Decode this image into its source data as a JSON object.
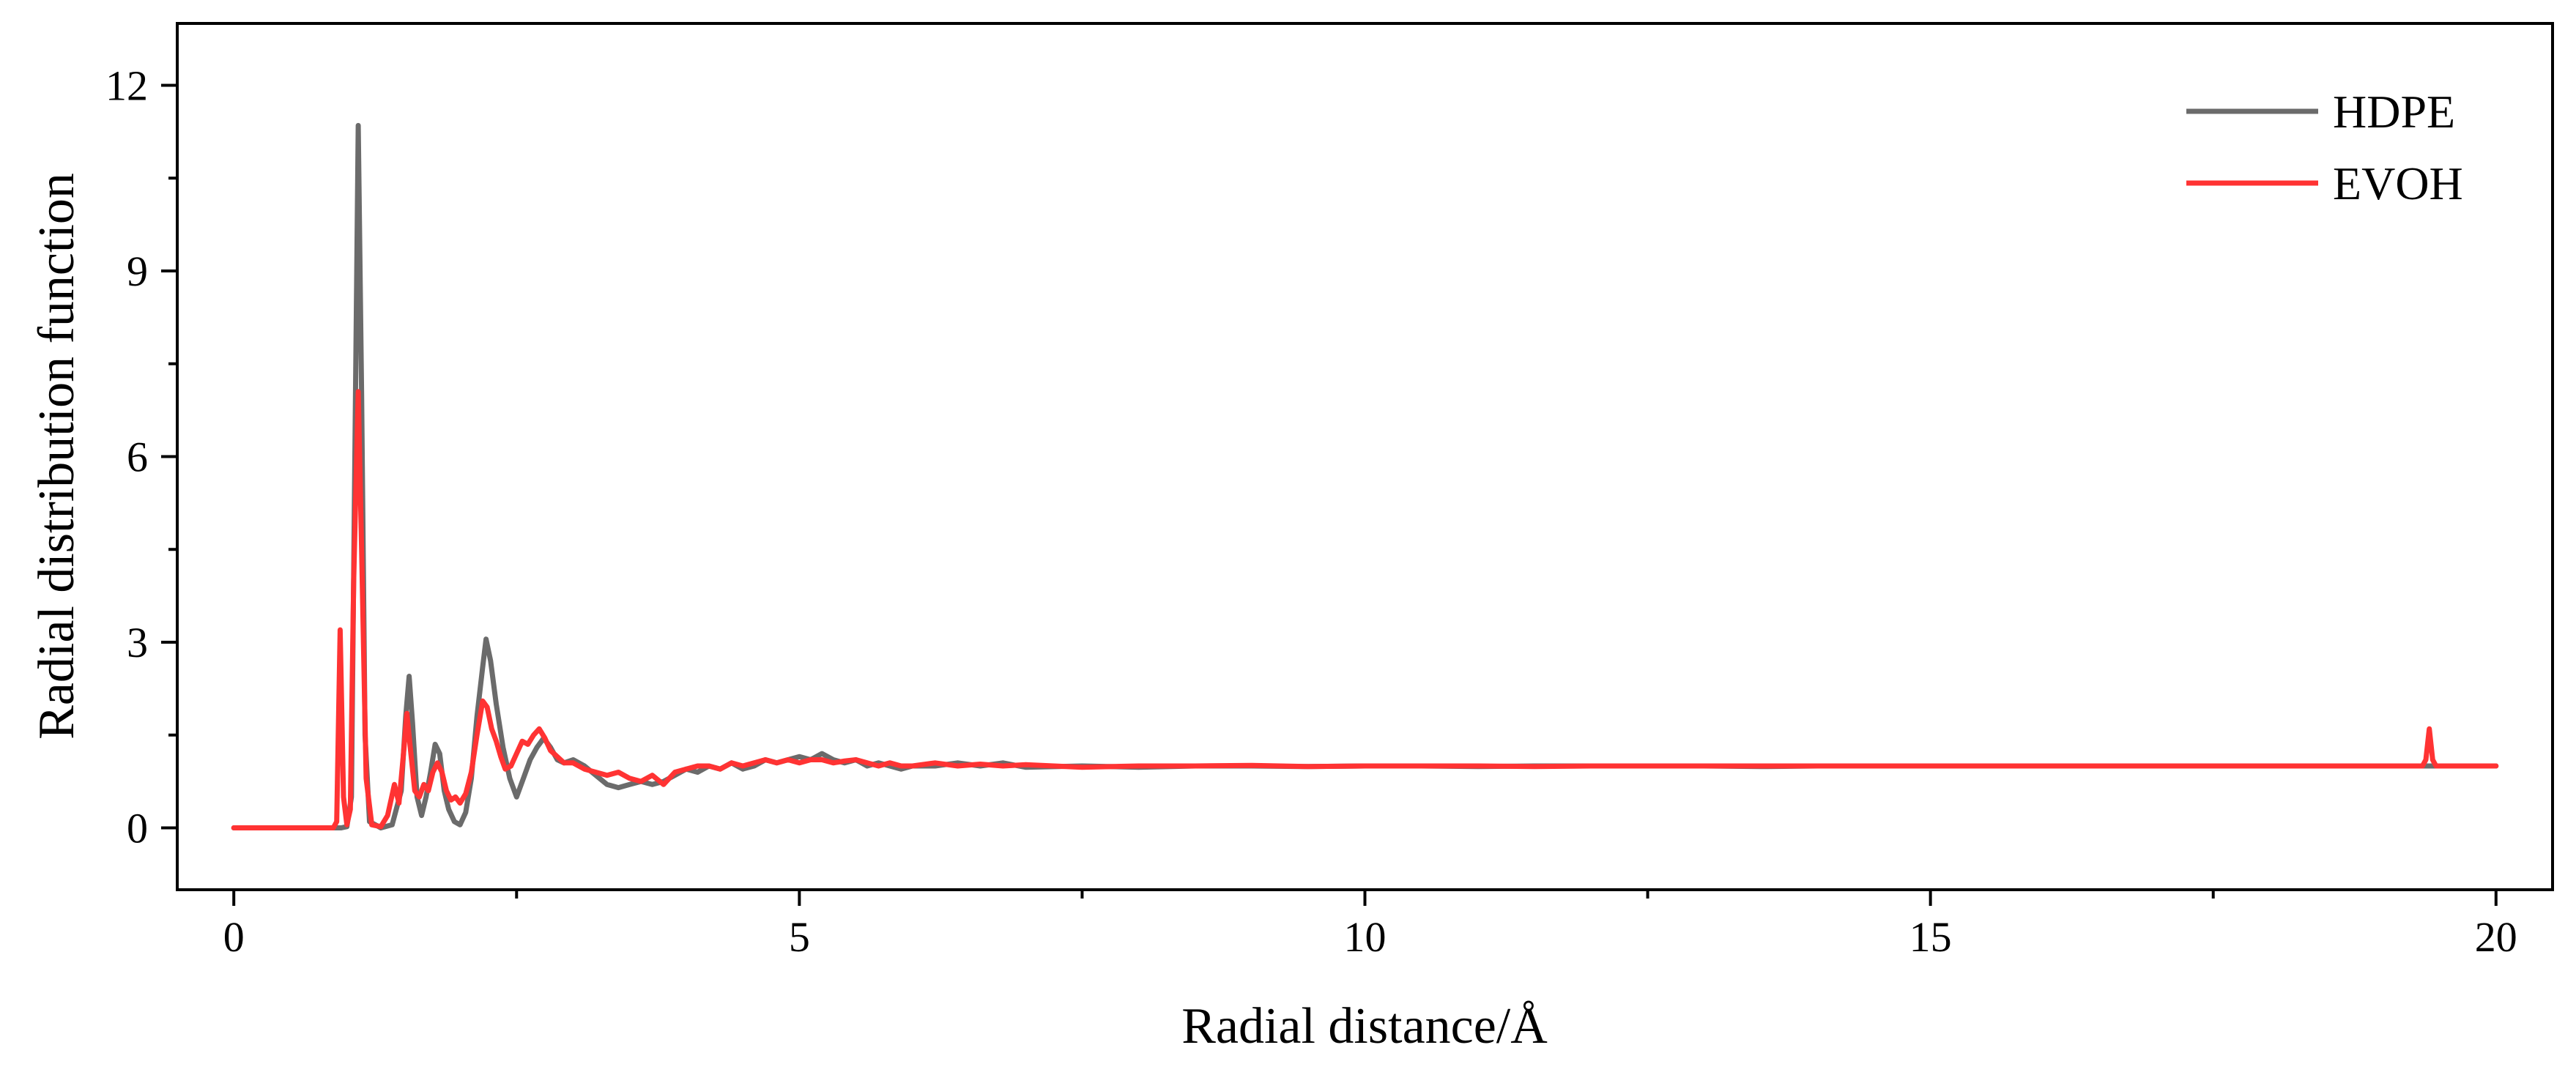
{
  "chart_data": {
    "type": "line",
    "xlabel": "Radial distance/Å",
    "ylabel": "Radial distribution function",
    "xlim": [
      -0.5,
      20.5
    ],
    "ylim": [
      -1,
      13
    ],
    "xticks": [
      0,
      5,
      10,
      15,
      20
    ],
    "xtick_labels": [
      "0",
      "5",
      "10",
      "15",
      "20"
    ],
    "yticks": [
      0,
      3,
      6,
      9,
      12
    ],
    "ytick_labels": [
      "0",
      "3",
      "6",
      "9",
      "12"
    ],
    "grid": false,
    "legend_position": "top-right",
    "series": [
      {
        "name": "HDPE",
        "color": "#6b6b6b",
        "points": [
          [
            0,
            0
          ],
          [
            0.9,
            0
          ],
          [
            0.95,
            0
          ],
          [
            1.0,
            0.02
          ],
          [
            1.04,
            0.5
          ],
          [
            1.07,
            6.0
          ],
          [
            1.1,
            11.35
          ],
          [
            1.13,
            7.0
          ],
          [
            1.16,
            1.5
          ],
          [
            1.2,
            0.1
          ],
          [
            1.3,
            0
          ],
          [
            1.4,
            0.05
          ],
          [
            1.48,
            0.6
          ],
          [
            1.52,
            1.8
          ],
          [
            1.55,
            2.45
          ],
          [
            1.58,
            1.7
          ],
          [
            1.62,
            0.5
          ],
          [
            1.66,
            0.2
          ],
          [
            1.7,
            0.5
          ],
          [
            1.74,
            0.9
          ],
          [
            1.78,
            1.35
          ],
          [
            1.82,
            1.2
          ],
          [
            1.86,
            0.6
          ],
          [
            1.9,
            0.3
          ],
          [
            1.95,
            0.1
          ],
          [
            2.0,
            0.05
          ],
          [
            2.05,
            0.25
          ],
          [
            2.1,
            0.8
          ],
          [
            2.15,
            1.8
          ],
          [
            2.2,
            2.6
          ],
          [
            2.23,
            3.05
          ],
          [
            2.27,
            2.7
          ],
          [
            2.32,
            2.0
          ],
          [
            2.38,
            1.3
          ],
          [
            2.44,
            0.8
          ],
          [
            2.5,
            0.5
          ],
          [
            2.56,
            0.8
          ],
          [
            2.62,
            1.1
          ],
          [
            2.68,
            1.3
          ],
          [
            2.74,
            1.45
          ],
          [
            2.8,
            1.3
          ],
          [
            2.86,
            1.1
          ],
          [
            2.92,
            1.05
          ],
          [
            3.0,
            1.1
          ],
          [
            3.1,
            1.0
          ],
          [
            3.2,
            0.85
          ],
          [
            3.3,
            0.7
          ],
          [
            3.4,
            0.65
          ],
          [
            3.5,
            0.7
          ],
          [
            3.6,
            0.75
          ],
          [
            3.7,
            0.7
          ],
          [
            3.8,
            0.75
          ],
          [
            3.9,
            0.85
          ],
          [
            4.0,
            0.95
          ],
          [
            4.1,
            0.9
          ],
          [
            4.2,
            1.0
          ],
          [
            4.3,
            0.95
          ],
          [
            4.4,
            1.05
          ],
          [
            4.5,
            0.95
          ],
          [
            4.6,
            1.0
          ],
          [
            4.7,
            1.1
          ],
          [
            4.8,
            1.05
          ],
          [
            4.9,
            1.1
          ],
          [
            5.0,
            1.15
          ],
          [
            5.1,
            1.1
          ],
          [
            5.2,
            1.2
          ],
          [
            5.3,
            1.1
          ],
          [
            5.4,
            1.05
          ],
          [
            5.5,
            1.1
          ],
          [
            5.6,
            1.0
          ],
          [
            5.7,
            1.05
          ],
          [
            5.8,
            1.0
          ],
          [
            5.9,
            0.95
          ],
          [
            6.0,
            1.0
          ],
          [
            6.2,
            1.0
          ],
          [
            6.4,
            1.05
          ],
          [
            6.6,
            1.0
          ],
          [
            6.8,
            1.05
          ],
          [
            7.0,
            0.98
          ],
          [
            7.5,
            1.0
          ],
          [
            8.0,
            0.98
          ],
          [
            8.5,
            1.0
          ],
          [
            9.0,
            1.0
          ],
          [
            9.5,
            0.99
          ],
          [
            10.0,
            1.0
          ],
          [
            10.5,
            1.0
          ],
          [
            11.0,
            0.99
          ],
          [
            11.5,
            1.0
          ],
          [
            12.0,
            1.0
          ],
          [
            12.5,
            1.0
          ],
          [
            13.0,
            1.0
          ],
          [
            13.5,
            0.99
          ],
          [
            14.0,
            1.0
          ],
          [
            14.5,
            1.0
          ],
          [
            15.0,
            1.0
          ],
          [
            15.5,
            1.0
          ],
          [
            16.0,
            1.0
          ],
          [
            16.5,
            1.0
          ],
          [
            17.0,
            1.0
          ],
          [
            17.5,
            1.0
          ],
          [
            18.0,
            1.0
          ],
          [
            18.5,
            1.0
          ],
          [
            19.0,
            1.0
          ],
          [
            19.5,
            1.0
          ],
          [
            20.0,
            1.0
          ]
        ]
      },
      {
        "name": "EVOH",
        "color": "#ff3333",
        "points": [
          [
            0,
            0
          ],
          [
            0.88,
            0
          ],
          [
            0.91,
            0.1
          ],
          [
            0.94,
            3.2
          ],
          [
            0.97,
            0.5
          ],
          [
            1.0,
            0.05
          ],
          [
            1.03,
            0.3
          ],
          [
            1.06,
            4.0
          ],
          [
            1.1,
            7.05
          ],
          [
            1.13,
            4.5
          ],
          [
            1.17,
            0.8
          ],
          [
            1.22,
            0.05
          ],
          [
            1.3,
            0.02
          ],
          [
            1.36,
            0.2
          ],
          [
            1.42,
            0.7
          ],
          [
            1.46,
            0.4
          ],
          [
            1.5,
            1.2
          ],
          [
            1.53,
            1.85
          ],
          [
            1.56,
            1.3
          ],
          [
            1.6,
            0.6
          ],
          [
            1.64,
            0.5
          ],
          [
            1.68,
            0.7
          ],
          [
            1.72,
            0.6
          ],
          [
            1.76,
            0.9
          ],
          [
            1.8,
            1.05
          ],
          [
            1.84,
            0.9
          ],
          [
            1.88,
            0.6
          ],
          [
            1.92,
            0.45
          ],
          [
            1.96,
            0.5
          ],
          [
            2.0,
            0.4
          ],
          [
            2.05,
            0.55
          ],
          [
            2.1,
            0.9
          ],
          [
            2.15,
            1.5
          ],
          [
            2.2,
            2.05
          ],
          [
            2.24,
            1.95
          ],
          [
            2.28,
            1.6
          ],
          [
            2.32,
            1.4
          ],
          [
            2.36,
            1.15
          ],
          [
            2.4,
            0.95
          ],
          [
            2.45,
            1.0
          ],
          [
            2.5,
            1.2
          ],
          [
            2.55,
            1.4
          ],
          [
            2.6,
            1.35
          ],
          [
            2.65,
            1.5
          ],
          [
            2.7,
            1.6
          ],
          [
            2.75,
            1.45
          ],
          [
            2.8,
            1.25
          ],
          [
            2.86,
            1.15
          ],
          [
            2.92,
            1.05
          ],
          [
            3.0,
            1.05
          ],
          [
            3.1,
            0.95
          ],
          [
            3.2,
            0.9
          ],
          [
            3.3,
            0.85
          ],
          [
            3.4,
            0.9
          ],
          [
            3.5,
            0.8
          ],
          [
            3.6,
            0.75
          ],
          [
            3.7,
            0.85
          ],
          [
            3.8,
            0.7
          ],
          [
            3.9,
            0.9
          ],
          [
            4.0,
            0.95
          ],
          [
            4.1,
            1.0
          ],
          [
            4.2,
            1.0
          ],
          [
            4.3,
            0.95
          ],
          [
            4.4,
            1.05
          ],
          [
            4.5,
            1.0
          ],
          [
            4.6,
            1.05
          ],
          [
            4.7,
            1.1
          ],
          [
            4.8,
            1.05
          ],
          [
            4.9,
            1.1
          ],
          [
            5.0,
            1.05
          ],
          [
            5.1,
            1.1
          ],
          [
            5.2,
            1.1
          ],
          [
            5.3,
            1.05
          ],
          [
            5.4,
            1.08
          ],
          [
            5.5,
            1.1
          ],
          [
            5.6,
            1.05
          ],
          [
            5.7,
            1.0
          ],
          [
            5.8,
            1.05
          ],
          [
            5.9,
            1.0
          ],
          [
            6.0,
            1.0
          ],
          [
            6.2,
            1.05
          ],
          [
            6.4,
            1.0
          ],
          [
            6.6,
            1.03
          ],
          [
            6.8,
            1.0
          ],
          [
            7.0,
            1.02
          ],
          [
            7.5,
            0.98
          ],
          [
            8.0,
            1.0
          ],
          [
            8.5,
            1.0
          ],
          [
            9.0,
            1.01
          ],
          [
            9.5,
            0.99
          ],
          [
            10.0,
            1.0
          ],
          [
            10.5,
            1.0
          ],
          [
            11.0,
            1.0
          ],
          [
            11.5,
            0.99
          ],
          [
            12.0,
            1.0
          ],
          [
            12.5,
            1.0
          ],
          [
            13.0,
            1.0
          ],
          [
            13.5,
            1.0
          ],
          [
            14.0,
            1.0
          ],
          [
            14.5,
            1.0
          ],
          [
            15.0,
            1.0
          ],
          [
            15.5,
            1.0
          ],
          [
            16.0,
            1.0
          ],
          [
            16.5,
            1.0
          ],
          [
            17.0,
            1.0
          ],
          [
            17.5,
            1.0
          ],
          [
            18.0,
            1.0
          ],
          [
            18.5,
            1.0
          ],
          [
            19.0,
            1.0
          ],
          [
            19.35,
            1.0
          ],
          [
            19.38,
            1.1
          ],
          [
            19.41,
            1.6
          ],
          [
            19.44,
            1.1
          ],
          [
            19.47,
            1.0
          ],
          [
            19.7,
            1.0
          ],
          [
            20.0,
            1.0
          ]
        ]
      }
    ]
  }
}
